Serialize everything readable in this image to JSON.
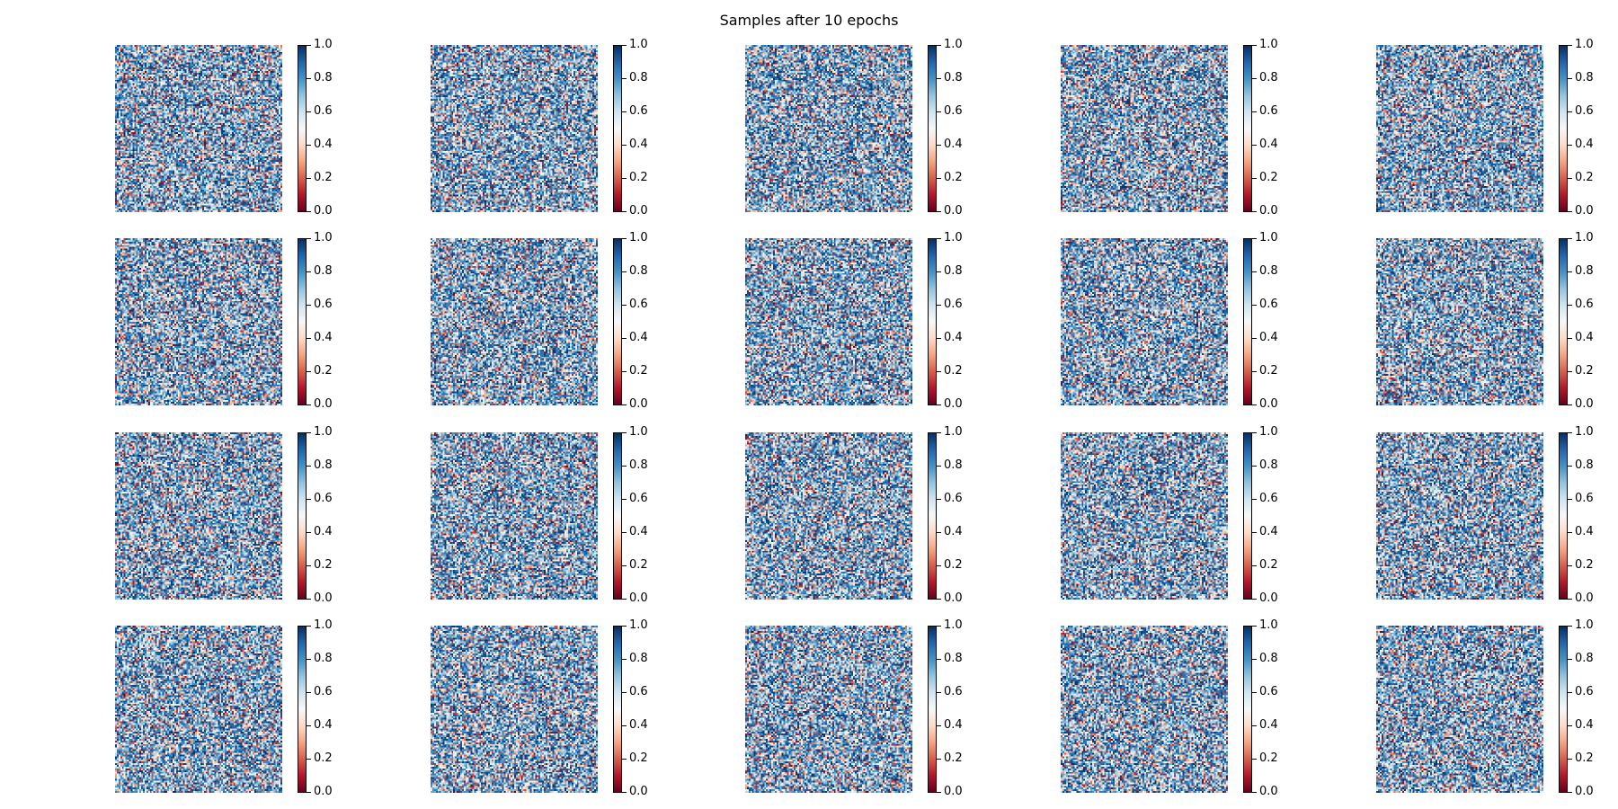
{
  "title": "Samples after 10 epochs",
  "chart_data": {
    "type": "heatmap",
    "title": "Samples after 10 epochs",
    "layout": {
      "rows": 4,
      "cols": 5
    },
    "num_samples": 20,
    "colormap": "RdBu",
    "colors": {
      "low": "#67001f",
      "mid": "#f7f7f7",
      "high": "#053061"
    },
    "vmin": 0.0,
    "vmax": 1.0,
    "colorbar_ticks": [
      "0.0",
      "0.2",
      "0.4",
      "0.6",
      "0.8",
      "1.0"
    ],
    "content": "random noise samples with values concentrated toward 1.0 (blue)",
    "axes": "off"
  }
}
